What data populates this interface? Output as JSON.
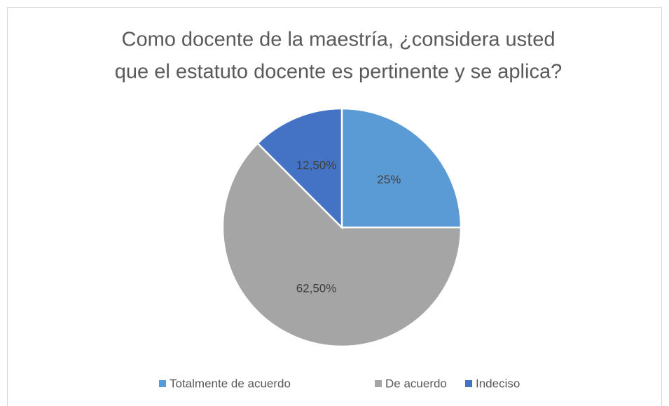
{
  "chart_data": {
    "type": "pie",
    "title": [
      "Como docente de la maestría, ¿considera usted",
      "que el estatuto docente es pertinente y se aplica?"
    ],
    "categories": [
      "Totalmente de acuerdo",
      "De acuerdo",
      "Indeciso"
    ],
    "values": [
      25,
      62.5,
      12.5
    ],
    "value_labels": [
      "25%",
      "62,50%",
      "12,50%"
    ],
    "colors": [
      "#5b9bd5",
      "#a5a5a5",
      "#4472c4"
    ],
    "legend": "bottom"
  }
}
